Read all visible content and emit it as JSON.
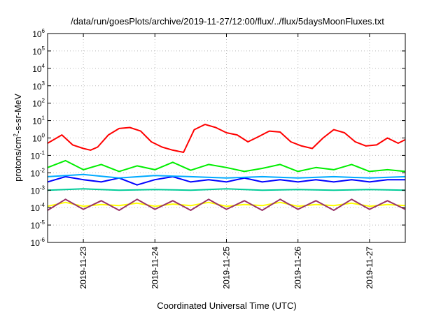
{
  "chart_data": {
    "type": "line",
    "title": "/data/run/goesPlots/archive/2019-11-27/12:00/flux/../flux/5daysMoonFluxes.txt",
    "xlabel": "Coordinated Universal Time (UTC)",
    "ylabel_parts": [
      "protons/cm",
      "2",
      "-s-sr-MeV"
    ],
    "yscale": "log",
    "ylim": [
      1e-06,
      1000000.0
    ],
    "xlim": [
      "2019-11-22T11:00",
      "2019-11-27T11:00"
    ],
    "grid": true,
    "x_tick_labels": [
      "2019-11-23",
      "2019-11-24",
      "2019-11-25",
      "2019-11-26",
      "2019-11-27"
    ],
    "y_tick_labels": [
      {
        "base": "10",
        "exp": "6"
      },
      {
        "base": "10",
        "exp": "5"
      },
      {
        "base": "10",
        "exp": "4"
      },
      {
        "base": "10",
        "exp": "3"
      },
      {
        "base": "10",
        "exp": "2"
      },
      {
        "base": "10",
        "exp": "1"
      },
      {
        "base": "10",
        "exp": "0"
      },
      {
        "base": "10",
        "exp": "-1"
      },
      {
        "base": "10",
        "exp": "-2"
      },
      {
        "base": "10",
        "exp": "-3"
      },
      {
        "base": "10",
        "exp": "-4"
      },
      {
        "base": "10",
        "exp": "-5"
      },
      {
        "base": "10",
        "exp": "-6"
      }
    ],
    "series": [
      {
        "color": "#ff0000",
        "x": [
          0.0,
          0.2,
          0.35,
          0.5,
          0.6,
          0.7,
          0.85,
          1.0,
          1.15,
          1.3,
          1.45,
          1.6,
          1.75,
          1.9,
          2.05,
          2.2,
          2.35,
          2.5,
          2.65,
          2.8,
          2.95,
          3.1,
          3.25,
          3.4,
          3.55,
          3.7,
          3.85,
          4.0,
          4.15,
          4.3,
          4.45,
          4.6,
          4.75,
          4.9,
          5.0
        ],
        "y": [
          0.5,
          1.5,
          0.4,
          0.25,
          0.2,
          0.3,
          1.5,
          3.5,
          4.0,
          2.5,
          0.6,
          0.3,
          0.2,
          0.15,
          3.0,
          6.0,
          4.0,
          2.0,
          1.5,
          0.6,
          1.2,
          2.5,
          2.2,
          0.6,
          0.35,
          0.25,
          1.0,
          3.0,
          2.0,
          0.6,
          0.35,
          0.4,
          1.0,
          0.5,
          0.8
        ]
      },
      {
        "color": "#00ee00",
        "x": [
          0.0,
          0.25,
          0.5,
          0.75,
          1.0,
          1.25,
          1.5,
          1.75,
          2.0,
          2.25,
          2.5,
          2.75,
          3.0,
          3.25,
          3.5,
          3.75,
          4.0,
          4.25,
          4.5,
          4.75,
          5.0
        ],
        "y": [
          0.02,
          0.05,
          0.015,
          0.03,
          0.012,
          0.025,
          0.015,
          0.04,
          0.014,
          0.03,
          0.02,
          0.012,
          0.018,
          0.03,
          0.012,
          0.02,
          0.015,
          0.03,
          0.012,
          0.015,
          0.012
        ]
      },
      {
        "color": "#0000ff",
        "x": [
          0.0,
          0.25,
          0.5,
          0.75,
          1.0,
          1.25,
          1.5,
          1.75,
          2.0,
          2.25,
          2.5,
          2.75,
          3.0,
          3.25,
          3.5,
          3.75,
          4.0,
          4.25,
          4.5,
          4.75,
          5.0
        ],
        "y": [
          0.003,
          0.006,
          0.004,
          0.003,
          0.005,
          0.002,
          0.004,
          0.006,
          0.003,
          0.004,
          0.003,
          0.005,
          0.003,
          0.004,
          0.003,
          0.004,
          0.003,
          0.004,
          0.003,
          0.004,
          0.004
        ]
      },
      {
        "color": "#00aaff",
        "x": [
          0.0,
          0.5,
          1.0,
          1.5,
          2.0,
          2.5,
          3.0,
          3.5,
          4.0,
          4.5,
          5.0
        ],
        "y": [
          0.006,
          0.008,
          0.005,
          0.007,
          0.006,
          0.005,
          0.006,
          0.005,
          0.006,
          0.005,
          0.006
        ]
      },
      {
        "color": "#00cc99",
        "x": [
          0.0,
          0.5,
          1.0,
          1.5,
          2.0,
          2.5,
          3.0,
          3.5,
          4.0,
          4.5,
          5.0
        ],
        "y": [
          0.001,
          0.0012,
          0.001,
          0.0011,
          0.001,
          0.0012,
          0.001,
          0.0011,
          0.001,
          0.0011,
          0.001
        ]
      },
      {
        "color": "#ffff00",
        "x": [
          0.0,
          0.25,
          0.5,
          0.75,
          1.0,
          1.25,
          1.5,
          1.75,
          2.0,
          2.25,
          2.5,
          2.75,
          3.0,
          3.25,
          3.5,
          3.75,
          4.0,
          4.25,
          4.5,
          4.75,
          5.0
        ],
        "y": [
          0.00012,
          0.0002,
          0.00012,
          0.00015,
          0.00013,
          0.00018,
          0.00012,
          0.00016,
          0.00013,
          0.0002,
          0.00012,
          0.00015,
          0.00013,
          0.0002,
          0.00012,
          0.00015,
          0.00013,
          0.00018,
          0.00012,
          0.00015,
          0.00013
        ]
      },
      {
        "color": "#993366",
        "x": [
          0.0,
          0.25,
          0.5,
          0.75,
          1.0,
          1.25,
          1.5,
          1.75,
          2.0,
          2.25,
          2.5,
          2.75,
          3.0,
          3.25,
          3.5,
          3.75,
          4.0,
          4.25,
          4.5,
          4.75,
          5.0
        ],
        "y": [
          7e-05,
          0.0003,
          8e-05,
          0.00025,
          7e-05,
          0.0003,
          8e-05,
          0.00025,
          7e-05,
          0.0003,
          8e-05,
          0.00025,
          7e-05,
          0.0003,
          8e-05,
          0.00025,
          7e-05,
          0.0003,
          8e-05,
          0.00025,
          8e-05
        ]
      }
    ]
  }
}
